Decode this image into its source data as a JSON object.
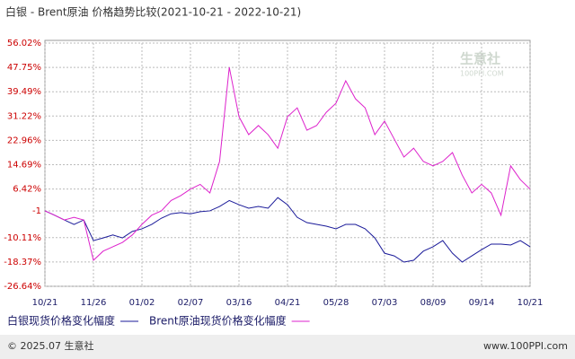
{
  "chart_data": {
    "type": "line",
    "title": "白银 - Brent原油 价格趋势比较(2021-10-21 - 2022-10-21)",
    "categories": [
      "10/21",
      null,
      null,
      null,
      null,
      "11/26",
      null,
      null,
      null,
      null,
      "01/02",
      null,
      null,
      null,
      null,
      "02/07",
      null,
      null,
      null,
      null,
      "03/16",
      null,
      null,
      null,
      null,
      "04/21",
      null,
      null,
      null,
      null,
      "05/28",
      null,
      null,
      null,
      null,
      "07/03",
      null,
      null,
      null,
      null,
      "08/09",
      null,
      null,
      null,
      null,
      "09/14",
      null,
      null,
      null,
      null,
      "10/21"
    ],
    "series": [
      {
        "name": "白银现货价格变化幅度",
        "color": "#1a1a99",
        "values": [
          -1.0,
          -2.5,
          -4.1,
          -5.6,
          -4.1,
          -11.1,
          -10.2,
          -9.2,
          -10.2,
          -8.0,
          -7.1,
          -5.6,
          -3.5,
          -2.0,
          -1.6,
          -2.0,
          -1.3,
          -1.0,
          0.5,
          2.5,
          1.1,
          -0.1,
          0.5,
          -0.1,
          3.5,
          1.1,
          -3.2,
          -5.0,
          -5.6,
          -6.2,
          -7.1,
          -5.6,
          -5.6,
          -7.1,
          -10.2,
          -15.4,
          -16.3,
          -18.4,
          -17.8,
          -14.7,
          -13.2,
          -11.1,
          -15.4,
          -18.4,
          -16.3,
          -14.2,
          -12.3,
          -12.3,
          -12.6,
          -11.1,
          -13.2
        ]
      },
      {
        "name": "Brent原油现货价格变化幅度",
        "color": "#dd22cc",
        "values": [
          -1,
          -2.5,
          -4.1,
          -3.2,
          -4.1,
          -17.8,
          -14.7,
          -13.2,
          -11.7,
          -9.2,
          -5.6,
          -2.5,
          -1,
          2.5,
          4.2,
          6.4,
          8.0,
          5.1,
          15.8,
          47.8,
          31,
          24.9,
          28,
          24.9,
          20.3,
          31,
          34,
          26.4,
          28,
          32.5,
          35.6,
          43.2,
          37.1,
          34,
          24.9,
          29.5,
          23.4,
          17.3,
          20.3,
          15.8,
          14.3,
          15.8,
          18.8,
          11.2,
          5.1,
          8.0,
          5.1,
          -2.5,
          14.3,
          9.6,
          6.4
        ]
      }
    ],
    "ylim": [
      -26.64,
      56.02
    ],
    "yticks": [
      {
        "value": 56.02,
        "label": "56.02%"
      },
      {
        "value": 47.75,
        "label": "47.75%"
      },
      {
        "value": 39.49,
        "label": "39.49%"
      },
      {
        "value": 31.22,
        "label": "31.22%"
      },
      {
        "value": 22.96,
        "label": "22.96%"
      },
      {
        "value": 14.69,
        "label": "14.69%"
      },
      {
        "value": 6.42,
        "label": "6.42%"
      },
      -1,
      {
        "value": -10.11,
        "label": "-10.11%"
      },
      {
        "value": -18.37,
        "label": "-18.37%"
      },
      {
        "value": -26.64,
        "label": "-26.64%"
      }
    ],
    "grid": true,
    "watermark": "生意社",
    "watermark_sub": "100PPI.COM",
    "footer_left": "© 2025.07 生意社",
    "footer_right": "www.100PPI.com"
  }
}
